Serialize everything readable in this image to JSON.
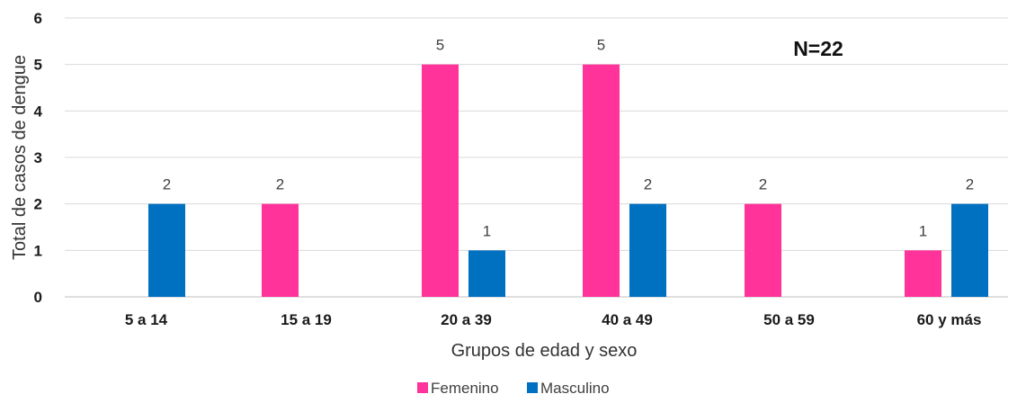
{
  "chart_data": {
    "type": "bar",
    "categories": [
      "5 a 14",
      "15 a 19",
      "20 a 39",
      "40 a 49",
      "50 a 59",
      "60 y más"
    ],
    "series": [
      {
        "name": "Femenino",
        "values": [
          0,
          2,
          5,
          5,
          2,
          1
        ],
        "color": "#ff3399"
      },
      {
        "name": "Masculino",
        "values": [
          2,
          0,
          1,
          2,
          0,
          2
        ],
        "color": "#0070c0"
      }
    ],
    "xlabel": "Grupos de edad y sexo",
    "ylabel": "Total de casos de dengue",
    "ylim": [
      0,
      6
    ],
    "yticks": [
      0,
      1,
      2,
      3,
      4,
      5,
      6
    ],
    "annotation": "N=22",
    "grid": true,
    "legend_position": "bottom"
  }
}
